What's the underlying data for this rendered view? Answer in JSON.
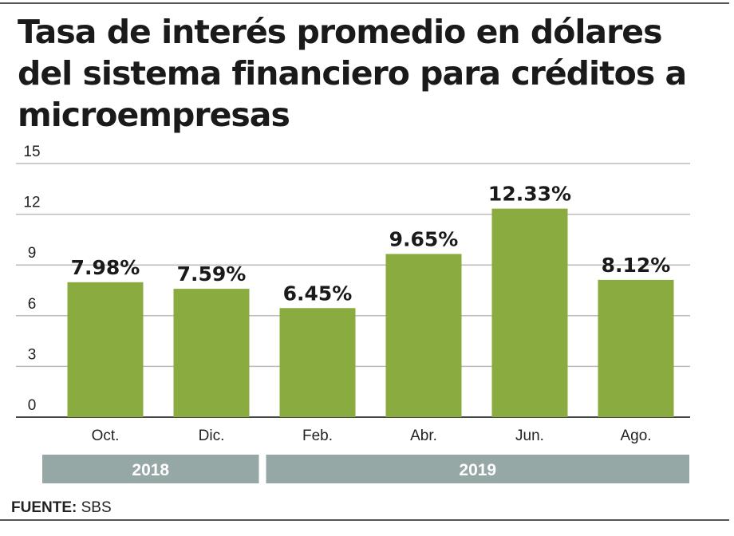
{
  "title": "Tasa de interés promedio en dólares del sistema financiero para créditos a microempresas",
  "source_label": "FUENTE:",
  "source_value": "SBS",
  "colors": {
    "bar": "#8aab3f",
    "year_band": "#95a8a6",
    "grid": "#bbbbbb",
    "text": "#1a1a1a"
  },
  "chart_data": {
    "type": "bar",
    "categories": [
      "Oct.",
      "Dic.",
      "Feb.",
      "Abr.",
      "Jun.",
      "Ago."
    ],
    "values": [
      7.98,
      7.59,
      6.45,
      9.65,
      12.33,
      8.12
    ],
    "data_labels": [
      "7.98%",
      "7.59%",
      "6.45%",
      "9.65%",
      "12.33%",
      "8.12%"
    ],
    "yticks": [
      "0",
      "3",
      "6",
      "9",
      "12",
      "15"
    ],
    "ylim": [
      0,
      15
    ],
    "grid": true,
    "groups": [
      {
        "label": "2018",
        "categories": [
          "Oct.",
          "Dic."
        ]
      },
      {
        "label": "2019",
        "categories": [
          "Feb.",
          "Abr.",
          "Jun.",
          "Ago."
        ]
      }
    ]
  }
}
